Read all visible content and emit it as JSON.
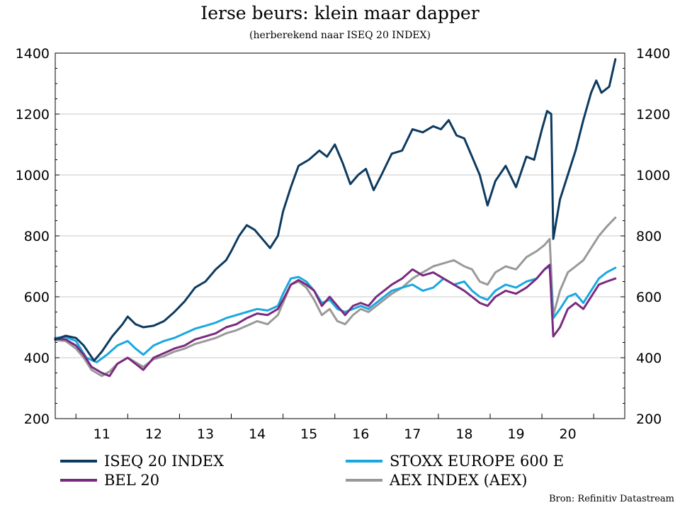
{
  "chart_data": {
    "type": "line",
    "title": "Ierse beurs: klein maar dapper",
    "subtitle": "(herberekend naar  ISEQ 20 INDEX)",
    "source": "Bron: Refinitiv Datastream",
    "xlabel": "",
    "ylabel": "",
    "ylim": [
      200,
      1400
    ],
    "xlim": [
      2010.6,
      2021.6
    ],
    "y_ticks": [
      200,
      400,
      600,
      800,
      1000,
      1200,
      1400
    ],
    "x_tick_labels": [
      "11",
      "12",
      "13",
      "14",
      "15",
      "16",
      "17",
      "18",
      "19",
      "20"
    ],
    "x_tick_positions": [
      2011.5,
      2012.5,
      2013.5,
      2014.5,
      2015.5,
      2016.5,
      2017.5,
      2018.5,
      2019.5,
      2020.5
    ],
    "grid": true,
    "legend_position": "bottom",
    "series": [
      {
        "name": "ISEQ 20 INDEX",
        "color": "#0d3a5f",
        "points": [
          [
            2010.6,
            460
          ],
          [
            2010.8,
            472
          ],
          [
            2011.0,
            465
          ],
          [
            2011.15,
            440
          ],
          [
            2011.35,
            390
          ],
          [
            2011.5,
            420
          ],
          [
            2011.7,
            470
          ],
          [
            2011.9,
            510
          ],
          [
            2012.0,
            535
          ],
          [
            2012.15,
            510
          ],
          [
            2012.3,
            500
          ],
          [
            2012.5,
            505
          ],
          [
            2012.7,
            520
          ],
          [
            2012.9,
            550
          ],
          [
            2013.1,
            585
          ],
          [
            2013.3,
            630
          ],
          [
            2013.5,
            650
          ],
          [
            2013.7,
            690
          ],
          [
            2013.9,
            720
          ],
          [
            2014.0,
            750
          ],
          [
            2014.15,
            800
          ],
          [
            2014.3,
            835
          ],
          [
            2014.45,
            820
          ],
          [
            2014.6,
            790
          ],
          [
            2014.75,
            760
          ],
          [
            2014.9,
            800
          ],
          [
            2015.0,
            880
          ],
          [
            2015.15,
            960
          ],
          [
            2015.3,
            1030
          ],
          [
            2015.5,
            1050
          ],
          [
            2015.7,
            1080
          ],
          [
            2015.85,
            1060
          ],
          [
            2016.0,
            1100
          ],
          [
            2016.15,
            1040
          ],
          [
            2016.3,
            970
          ],
          [
            2016.45,
            1000
          ],
          [
            2016.6,
            1020
          ],
          [
            2016.75,
            950
          ],
          [
            2016.9,
            1000
          ],
          [
            2017.1,
            1070
          ],
          [
            2017.3,
            1080
          ],
          [
            2017.5,
            1150
          ],
          [
            2017.7,
            1140
          ],
          [
            2017.9,
            1160
          ],
          [
            2018.05,
            1150
          ],
          [
            2018.2,
            1180
          ],
          [
            2018.35,
            1130
          ],
          [
            2018.5,
            1120
          ],
          [
            2018.65,
            1060
          ],
          [
            2018.8,
            1000
          ],
          [
            2018.95,
            900
          ],
          [
            2019.1,
            980
          ],
          [
            2019.3,
            1030
          ],
          [
            2019.5,
            960
          ],
          [
            2019.7,
            1060
          ],
          [
            2019.85,
            1050
          ],
          [
            2020.0,
            1150
          ],
          [
            2020.1,
            1210
          ],
          [
            2020.18,
            1200
          ],
          [
            2020.22,
            790
          ],
          [
            2020.35,
            920
          ],
          [
            2020.5,
            1000
          ],
          [
            2020.65,
            1080
          ],
          [
            2020.8,
            1180
          ],
          [
            2020.95,
            1270
          ],
          [
            2021.05,
            1310
          ],
          [
            2021.15,
            1270
          ],
          [
            2021.3,
            1290
          ],
          [
            2021.42,
            1380
          ]
        ]
      },
      {
        "name": "STOXX EUROPE 600 E",
        "color": "#1aa7e0",
        "points": [
          [
            2010.6,
            465
          ],
          [
            2010.8,
            468
          ],
          [
            2011.0,
            455
          ],
          [
            2011.2,
            400
          ],
          [
            2011.4,
            385
          ],
          [
            2011.6,
            410
          ],
          [
            2011.8,
            440
          ],
          [
            2012.0,
            455
          ],
          [
            2012.15,
            430
          ],
          [
            2012.3,
            410
          ],
          [
            2012.5,
            440
          ],
          [
            2012.7,
            455
          ],
          [
            2012.9,
            465
          ],
          [
            2013.1,
            480
          ],
          [
            2013.3,
            495
          ],
          [
            2013.5,
            505
          ],
          [
            2013.7,
            515
          ],
          [
            2013.9,
            530
          ],
          [
            2014.1,
            540
          ],
          [
            2014.3,
            550
          ],
          [
            2014.5,
            560
          ],
          [
            2014.7,
            555
          ],
          [
            2014.9,
            570
          ],
          [
            2015.0,
            610
          ],
          [
            2015.15,
            660
          ],
          [
            2015.3,
            665
          ],
          [
            2015.45,
            650
          ],
          [
            2015.6,
            620
          ],
          [
            2015.75,
            580
          ],
          [
            2015.9,
            590
          ],
          [
            2016.05,
            560
          ],
          [
            2016.2,
            550
          ],
          [
            2016.35,
            560
          ],
          [
            2016.5,
            570
          ],
          [
            2016.65,
            560
          ],
          [
            2016.8,
            580
          ],
          [
            2016.95,
            600
          ],
          [
            2017.1,
            620
          ],
          [
            2017.3,
            630
          ],
          [
            2017.5,
            640
          ],
          [
            2017.7,
            620
          ],
          [
            2017.9,
            630
          ],
          [
            2018.1,
            660
          ],
          [
            2018.3,
            640
          ],
          [
            2018.5,
            650
          ],
          [
            2018.65,
            620
          ],
          [
            2018.8,
            600
          ],
          [
            2018.95,
            590
          ],
          [
            2019.1,
            620
          ],
          [
            2019.3,
            640
          ],
          [
            2019.5,
            630
          ],
          [
            2019.7,
            650
          ],
          [
            2019.9,
            660
          ],
          [
            2020.05,
            690
          ],
          [
            2020.15,
            700
          ],
          [
            2020.22,
            530
          ],
          [
            2020.35,
            560
          ],
          [
            2020.5,
            600
          ],
          [
            2020.65,
            610
          ],
          [
            2020.8,
            580
          ],
          [
            2020.95,
            620
          ],
          [
            2021.1,
            660
          ],
          [
            2021.25,
            680
          ],
          [
            2021.42,
            695
          ]
        ]
      },
      {
        "name": "BEL 20",
        "color": "#7a2a7e",
        "points": [
          [
            2010.6,
            462
          ],
          [
            2010.8,
            460
          ],
          [
            2011.0,
            440
          ],
          [
            2011.15,
            410
          ],
          [
            2011.3,
            370
          ],
          [
            2011.5,
            350
          ],
          [
            2011.65,
            340
          ],
          [
            2011.8,
            380
          ],
          [
            2012.0,
            400
          ],
          [
            2012.15,
            380
          ],
          [
            2012.3,
            360
          ],
          [
            2012.5,
            400
          ],
          [
            2012.7,
            415
          ],
          [
            2012.9,
            430
          ],
          [
            2013.1,
            440
          ],
          [
            2013.3,
            460
          ],
          [
            2013.5,
            470
          ],
          [
            2013.7,
            480
          ],
          [
            2013.9,
            500
          ],
          [
            2014.1,
            510
          ],
          [
            2014.3,
            530
          ],
          [
            2014.5,
            545
          ],
          [
            2014.7,
            540
          ],
          [
            2014.9,
            560
          ],
          [
            2015.0,
            590
          ],
          [
            2015.15,
            640
          ],
          [
            2015.3,
            655
          ],
          [
            2015.45,
            640
          ],
          [
            2015.6,
            620
          ],
          [
            2015.75,
            570
          ],
          [
            2015.9,
            600
          ],
          [
            2016.05,
            570
          ],
          [
            2016.2,
            540
          ],
          [
            2016.35,
            570
          ],
          [
            2016.5,
            580
          ],
          [
            2016.65,
            570
          ],
          [
            2016.8,
            600
          ],
          [
            2016.95,
            620
          ],
          [
            2017.1,
            640
          ],
          [
            2017.3,
            660
          ],
          [
            2017.5,
            690
          ],
          [
            2017.7,
            670
          ],
          [
            2017.9,
            680
          ],
          [
            2018.1,
            660
          ],
          [
            2018.3,
            640
          ],
          [
            2018.5,
            620
          ],
          [
            2018.65,
            600
          ],
          [
            2018.8,
            580
          ],
          [
            2018.95,
            570
          ],
          [
            2019.1,
            600
          ],
          [
            2019.3,
            620
          ],
          [
            2019.5,
            610
          ],
          [
            2019.7,
            630
          ],
          [
            2019.9,
            660
          ],
          [
            2020.05,
            690
          ],
          [
            2020.15,
            705
          ],
          [
            2020.22,
            470
          ],
          [
            2020.35,
            500
          ],
          [
            2020.5,
            560
          ],
          [
            2020.65,
            580
          ],
          [
            2020.8,
            560
          ],
          [
            2020.95,
            600
          ],
          [
            2021.1,
            640
          ],
          [
            2021.25,
            650
          ],
          [
            2021.42,
            660
          ]
        ]
      },
      {
        "name": "AEX INDEX (AEX)",
        "color": "#999999",
        "points": [
          [
            2010.6,
            458
          ],
          [
            2010.8,
            455
          ],
          [
            2011.0,
            430
          ],
          [
            2011.15,
            400
          ],
          [
            2011.3,
            360
          ],
          [
            2011.5,
            340
          ],
          [
            2011.65,
            355
          ],
          [
            2011.8,
            380
          ],
          [
            2012.0,
            400
          ],
          [
            2012.15,
            385
          ],
          [
            2012.3,
            370
          ],
          [
            2012.5,
            395
          ],
          [
            2012.7,
            405
          ],
          [
            2012.9,
            420
          ],
          [
            2013.1,
            430
          ],
          [
            2013.3,
            445
          ],
          [
            2013.5,
            455
          ],
          [
            2013.7,
            465
          ],
          [
            2013.9,
            480
          ],
          [
            2014.1,
            490
          ],
          [
            2014.3,
            505
          ],
          [
            2014.5,
            520
          ],
          [
            2014.7,
            510
          ],
          [
            2014.9,
            540
          ],
          [
            2015.0,
            580
          ],
          [
            2015.15,
            640
          ],
          [
            2015.3,
            650
          ],
          [
            2015.45,
            630
          ],
          [
            2015.6,
            590
          ],
          [
            2015.75,
            540
          ],
          [
            2015.9,
            560
          ],
          [
            2016.05,
            520
          ],
          [
            2016.2,
            510
          ],
          [
            2016.35,
            540
          ],
          [
            2016.5,
            560
          ],
          [
            2016.65,
            550
          ],
          [
            2016.8,
            570
          ],
          [
            2016.95,
            590
          ],
          [
            2017.1,
            610
          ],
          [
            2017.3,
            630
          ],
          [
            2017.5,
            660
          ],
          [
            2017.7,
            680
          ],
          [
            2017.9,
            700
          ],
          [
            2018.1,
            710
          ],
          [
            2018.3,
            720
          ],
          [
            2018.5,
            700
          ],
          [
            2018.65,
            690
          ],
          [
            2018.8,
            650
          ],
          [
            2018.95,
            640
          ],
          [
            2019.1,
            680
          ],
          [
            2019.3,
            700
          ],
          [
            2019.5,
            690
          ],
          [
            2019.7,
            730
          ],
          [
            2019.9,
            750
          ],
          [
            2020.05,
            770
          ],
          [
            2020.15,
            790
          ],
          [
            2020.22,
            540
          ],
          [
            2020.35,
            620
          ],
          [
            2020.5,
            680
          ],
          [
            2020.65,
            700
          ],
          [
            2020.8,
            720
          ],
          [
            2020.95,
            760
          ],
          [
            2021.1,
            800
          ],
          [
            2021.25,
            830
          ],
          [
            2021.42,
            860
          ]
        ]
      }
    ]
  }
}
